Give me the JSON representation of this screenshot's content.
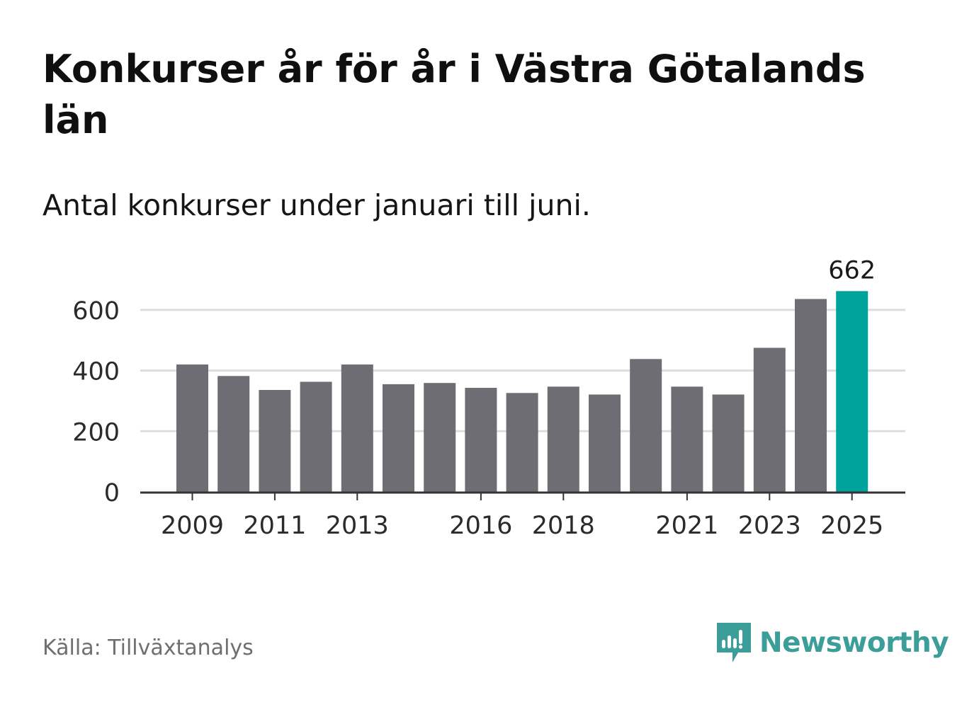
{
  "title": "Konkurser år för år i Västra Götalands län",
  "subtitle": "Antal konkurser under januari till juni.",
  "source": "Källa: Tillväxtanalys",
  "brand": {
    "name": "Newsworthy",
    "color": "#3c9e98"
  },
  "colors": {
    "bar": "#6e6d73",
    "highlight": "#00a39b",
    "grid": "#dddddd",
    "axis": "#333333"
  },
  "chart_data": {
    "type": "bar",
    "categories": [
      "2009",
      "2010",
      "2011",
      "2012",
      "2013",
      "2014",
      "2015",
      "2016",
      "2017",
      "2018",
      "2019",
      "2020",
      "2021",
      "2022",
      "2023",
      "2024",
      "2025"
    ],
    "values": [
      420,
      382,
      336,
      363,
      420,
      355,
      359,
      343,
      326,
      347,
      321,
      438,
      347,
      321,
      475,
      636,
      662
    ],
    "highlight_index": 16,
    "data_labels": [
      {
        "index": 16,
        "text": "662"
      }
    ],
    "x_tick_labels": [
      "2009",
      "2011",
      "2013",
      "2016",
      "2018",
      "2021",
      "2023",
      "2025"
    ],
    "y_ticks": [
      0,
      200,
      400,
      600
    ],
    "ylim": [
      0,
      662
    ],
    "grid": true,
    "xlabel": "",
    "ylabel": ""
  }
}
